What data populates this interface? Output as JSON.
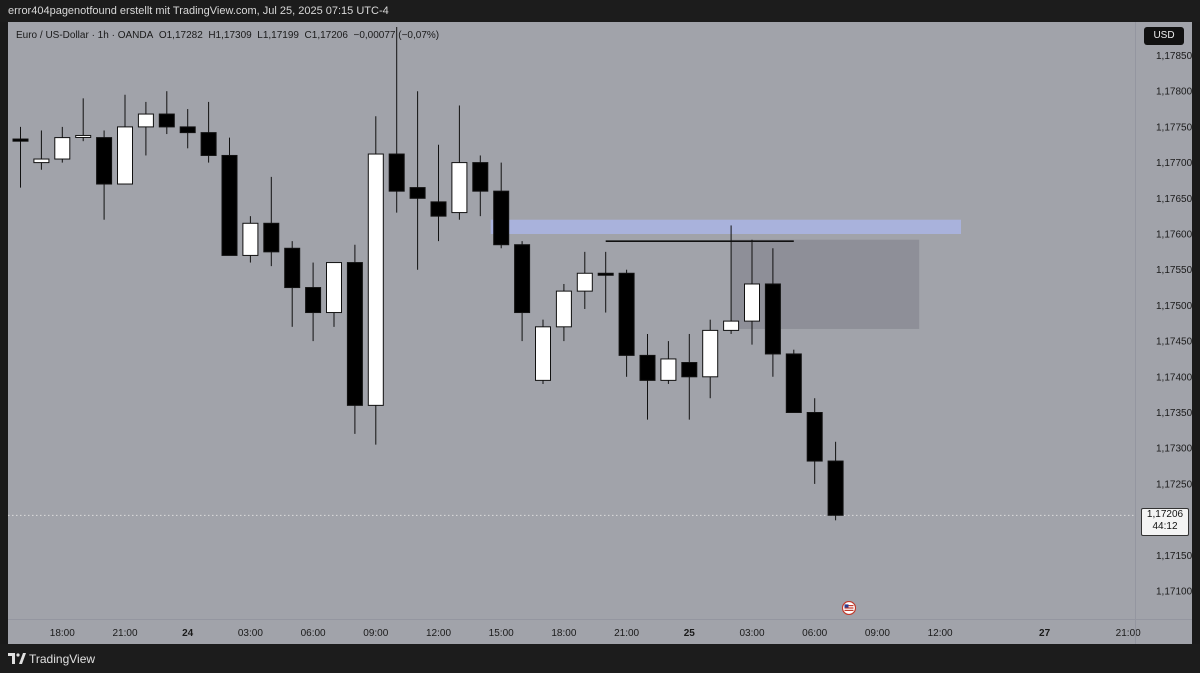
{
  "header": {
    "attribution": "error404pagenotfound erstellt mit TradingView.com, Jul 25, 2025 07:15 UTC-4"
  },
  "legend": {
    "symbol": "Euro / US-Dollar · 1h · OANDA",
    "open": "O1,17282",
    "high": "H1,17309",
    "low": "L1,17199",
    "close": "C1,17206",
    "change": "−0,00077 (−0,07%)"
  },
  "currency_button": "USD",
  "price_label": {
    "value": "1,17206",
    "countdown": "44:12"
  },
  "footer": {
    "brand": "TradingView"
  },
  "colors": {
    "background": "#a1a3aa",
    "bull_candle": "#ffffff",
    "bear_candle": "#000000",
    "supply_zone": "#a9b2dc",
    "gray_zone": "#8e8f98"
  },
  "icons": {
    "logo": "tradingview-logo-icon",
    "event": "us-flag-icon"
  },
  "chart_data": {
    "type": "candlestick",
    "interval": "1h",
    "y_ticks": [
      "1,17850",
      "1,17800",
      "1,17750",
      "1,17700",
      "1,17650",
      "1,17600",
      "1,17550",
      "1,17500",
      "1,17450",
      "1,17400",
      "1,17350",
      "1,17300",
      "1,17250",
      "1,17150",
      "1,17100"
    ],
    "x_ticks": [
      {
        "label": "18:00",
        "bar": 2
      },
      {
        "label": "21:00",
        "bar": 5
      },
      {
        "label": "24",
        "bar": 8,
        "bold": true
      },
      {
        "label": "03:00",
        "bar": 11
      },
      {
        "label": "06:00",
        "bar": 14
      },
      {
        "label": "09:00",
        "bar": 17
      },
      {
        "label": "12:00",
        "bar": 20
      },
      {
        "label": "15:00",
        "bar": 23
      },
      {
        "label": "18:00",
        "bar": 26
      },
      {
        "label": "21:00",
        "bar": 29
      },
      {
        "label": "25",
        "bar": 32,
        "bold": true
      },
      {
        "label": "03:00",
        "bar": 35
      },
      {
        "label": "06:00",
        "bar": 38
      },
      {
        "label": "09:00",
        "bar": 41
      },
      {
        "label": "12:00",
        "bar": 44
      },
      {
        "label": "27",
        "bar": 49,
        "bold": true
      },
      {
        "label": "21:00",
        "bar": 53
      }
    ],
    "y_range": [
      1.1706,
      1.1789
    ],
    "candles": [
      {
        "o": 1.17733,
        "h": 1.1775,
        "l": 1.17665,
        "c": 1.1773
      },
      {
        "o": 1.177,
        "h": 1.17745,
        "l": 1.1769,
        "c": 1.17705
      },
      {
        "o": 1.17705,
        "h": 1.1775,
        "l": 1.177,
        "c": 1.17735
      },
      {
        "o": 1.17737,
        "h": 1.1779,
        "l": 1.1773,
        "c": 1.17738
      },
      {
        "o": 1.17735,
        "h": 1.17745,
        "l": 1.1762,
        "c": 1.1767
      },
      {
        "o": 1.1767,
        "h": 1.17795,
        "l": 1.1767,
        "c": 1.1775
      },
      {
        "o": 1.1775,
        "h": 1.17785,
        "l": 1.1771,
        "c": 1.17768
      },
      {
        "o": 1.17768,
        "h": 1.178,
        "l": 1.1774,
        "c": 1.1775
      },
      {
        "o": 1.1775,
        "h": 1.17775,
        "l": 1.1772,
        "c": 1.17742
      },
      {
        "o": 1.17742,
        "h": 1.17785,
        "l": 1.177,
        "c": 1.1771
      },
      {
        "o": 1.1771,
        "h": 1.17735,
        "l": 1.1757,
        "c": 1.1757
      },
      {
        "o": 1.1757,
        "h": 1.17625,
        "l": 1.1756,
        "c": 1.17615
      },
      {
        "o": 1.17615,
        "h": 1.1768,
        "l": 1.17555,
        "c": 1.17575
      },
      {
        "o": 1.1758,
        "h": 1.1759,
        "l": 1.1747,
        "c": 1.17525
      },
      {
        "o": 1.17525,
        "h": 1.1756,
        "l": 1.1745,
        "c": 1.1749
      },
      {
        "o": 1.1749,
        "h": 1.1756,
        "l": 1.1747,
        "c": 1.1756
      },
      {
        "o": 1.1756,
        "h": 1.17585,
        "l": 1.1732,
        "c": 1.1736
      },
      {
        "o": 1.1736,
        "h": 1.17765,
        "l": 1.17305,
        "c": 1.17712
      },
      {
        "o": 1.17712,
        "h": 1.1789,
        "l": 1.1763,
        "c": 1.1766
      },
      {
        "o": 1.17665,
        "h": 1.178,
        "l": 1.1755,
        "c": 1.1765
      },
      {
        "o": 1.17645,
        "h": 1.17725,
        "l": 1.1759,
        "c": 1.17625
      },
      {
        "o": 1.1763,
        "h": 1.1778,
        "l": 1.1762,
        "c": 1.177
      },
      {
        "o": 1.177,
        "h": 1.1771,
        "l": 1.17625,
        "c": 1.1766
      },
      {
        "o": 1.1766,
        "h": 1.177,
        "l": 1.1758,
        "c": 1.17585
      },
      {
        "o": 1.17585,
        "h": 1.1759,
        "l": 1.1745,
        "c": 1.1749
      },
      {
        "o": 1.17395,
        "h": 1.1748,
        "l": 1.1739,
        "c": 1.1747
      },
      {
        "o": 1.1747,
        "h": 1.1753,
        "l": 1.1745,
        "c": 1.1752
      },
      {
        "o": 1.1752,
        "h": 1.17575,
        "l": 1.17495,
        "c": 1.17545
      },
      {
        "o": 1.17545,
        "h": 1.17575,
        "l": 1.1749,
        "c": 1.17543
      },
      {
        "o": 1.17545,
        "h": 1.1755,
        "l": 1.174,
        "c": 1.1743
      },
      {
        "o": 1.1743,
        "h": 1.1746,
        "l": 1.1734,
        "c": 1.17395
      },
      {
        "o": 1.17395,
        "h": 1.1745,
        "l": 1.1739,
        "c": 1.17425
      },
      {
        "o": 1.1742,
        "h": 1.1746,
        "l": 1.1734,
        "c": 1.174
      },
      {
        "o": 1.174,
        "h": 1.1748,
        "l": 1.1737,
        "c": 1.17465
      },
      {
        "o": 1.17465,
        "h": 1.17612,
        "l": 1.1746,
        "c": 1.17478
      },
      {
        "o": 1.17478,
        "h": 1.17592,
        "l": 1.17445,
        "c": 1.1753
      },
      {
        "o": 1.1753,
        "h": 1.1758,
        "l": 1.174,
        "c": 1.17432
      },
      {
        "o": 1.17432,
        "h": 1.17438,
        "l": 1.1735,
        "c": 1.1735
      },
      {
        "o": 1.1735,
        "h": 1.1737,
        "l": 1.1725,
        "c": 1.17282
      },
      {
        "o": 1.17282,
        "h": 1.17309,
        "l": 1.17199,
        "c": 1.17206
      }
    ],
    "annotations": [
      {
        "type": "zone",
        "name": "blue-zone",
        "from_bar": 22.5,
        "to_bar": 45,
        "y_top": 1.1762,
        "y_bottom": 1.176,
        "color": "#a9b2dc"
      },
      {
        "type": "zone",
        "name": "gray-zone",
        "from_bar": 34,
        "to_bar": 43,
        "y_top": 1.17592,
        "y_bottom": 1.17467,
        "color": "#8e8f98"
      },
      {
        "type": "hline",
        "name": "resistance-line",
        "from_bar": 28,
        "to_bar": 37,
        "y": 1.1759
      },
      {
        "type": "dotted-line",
        "name": "last-price-line",
        "y": 1.17206
      }
    ]
  }
}
